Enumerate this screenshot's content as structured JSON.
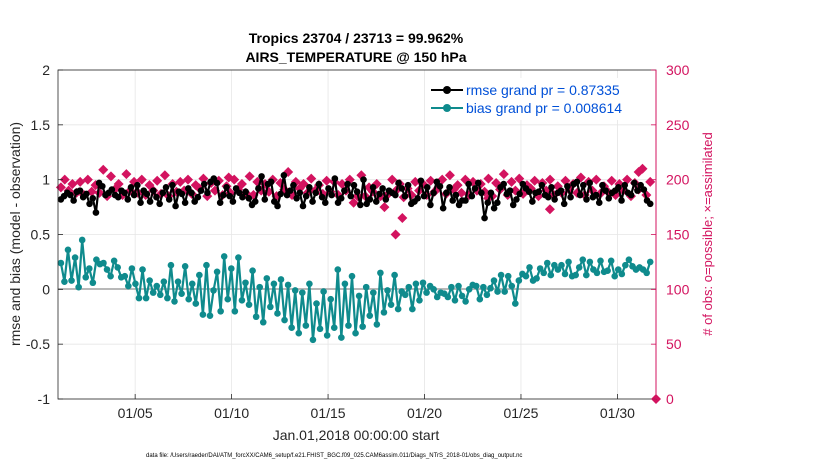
{
  "chart_data": {
    "type": "line",
    "title_line1": "Tropics 23704 / 23713 = 99.962%",
    "title_line2": "AIRS_TEMPERATURE @ 150 hPa",
    "xlabel": "Jan.01,2018 00:00:00 start",
    "ylabel_left": "rmse and bias (model - observation)",
    "ylabel_right": "# of obs: o=possible; ×=assimilated",
    "x_tick_labels": [
      "01/05",
      "01/10",
      "01/15",
      "01/20",
      "01/25",
      "01/30"
    ],
    "x_tick_days": [
      5,
      10,
      15,
      20,
      25,
      30
    ],
    "xlim": [
      1,
      32
    ],
    "y_left_ticks": [
      -1,
      -0.5,
      0,
      0.5,
      1,
      1.5,
      2
    ],
    "y_left_tick_labels": [
      "-1",
      "-0.5",
      "0",
      "0.5",
      "1",
      "1.5",
      "2"
    ],
    "ylim_left": [
      -1,
      2
    ],
    "y_right_ticks": [
      0,
      50,
      100,
      150,
      200,
      250,
      300
    ],
    "y_right_tick_labels": [
      "0",
      "50",
      "100",
      "150",
      "200",
      "250",
      "300"
    ],
    "ylim_right": [
      0,
      300
    ],
    "zero_line": 0,
    "legend": {
      "rmse_label": "rmse grand pr = 0.87335",
      "bias_label": "bias grand pr = 0.008614",
      "position": "top-right"
    },
    "series": [
      {
        "name": "rmse",
        "axis": "left",
        "color": "#000000",
        "values": [
          0.82,
          0.85,
          0.88,
          0.86,
          0.81,
          0.89,
          0.9,
          0.84,
          0.87,
          0.78,
          0.83,
          0.7,
          0.97,
          0.94,
          0.86,
          0.88,
          0.91,
          0.86,
          0.84,
          0.9,
          0.88,
          0.82,
          0.93,
          0.86,
          0.95,
          0.79,
          0.9,
          0.87,
          0.8,
          0.9,
          0.84,
          0.78,
          0.88,
          0.93,
          0.82,
          0.95,
          0.76,
          0.89,
          0.87,
          0.79,
          0.92,
          0.88,
          0.8,
          0.84,
          0.9,
          0.96,
          0.88,
          0.98,
          1.01,
          0.97,
          0.79,
          0.86,
          0.93,
          0.85,
          0.8,
          0.92,
          0.88,
          0.84,
          0.89,
          0.83,
          0.77,
          0.8,
          0.92,
          1.03,
          0.82,
          0.96,
          0.98,
          0.8,
          0.76,
          0.87,
          1.04,
          0.86,
          0.9,
          0.95,
          0.83,
          0.88,
          0.76,
          0.85,
          0.93,
          0.8,
          0.88,
          0.96,
          0.84,
          0.79,
          0.92,
          0.86,
          1.01,
          0.79,
          0.83,
          0.9,
          0.96,
          0.85,
          0.95,
          0.89,
          0.77,
          1.0,
          0.78,
          0.82,
          0.93,
          0.8,
          0.87,
          0.92,
          0.82,
          0.9,
          0.88,
          0.86,
          0.97,
          0.92,
          0.85,
          0.95,
          0.78,
          0.8,
          0.83,
          0.99,
          0.85,
          0.93,
          0.77,
          0.88,
          0.98,
          0.94,
          0.74,
          0.88,
          0.93,
          0.81,
          0.86,
          0.77,
          0.81,
          0.81,
          0.96,
          0.85,
          0.92,
          0.97,
          0.88,
          0.65,
          0.79,
          0.88,
          0.74,
          0.79,
          0.93,
          0.96,
          0.87,
          0.9,
          0.77,
          0.82,
          0.87,
          0.96,
          0.92,
          0.89,
          0.8,
          0.88,
          0.89,
          0.95,
          0.86,
          0.84,
          0.93,
          0.82,
          0.88,
          0.9,
          0.78,
          0.94,
          0.84,
          0.96,
          0.98,
          0.86,
          0.95,
          0.82,
          0.97,
          0.84,
          0.86,
          0.79,
          0.95,
          0.9,
          0.83,
          0.88,
          0.9,
          0.93,
          0.81,
          0.95,
          0.88,
          0.86,
          0.97,
          0.9,
          0.95,
          0.91,
          0.81,
          0.78
        ]
      },
      {
        "name": "bias",
        "axis": "left",
        "color": "#0f8b8d",
        "values": [
          0.24,
          0.07,
          0.36,
          0.08,
          0.29,
          0.02,
          0.45,
          0.11,
          0.19,
          0.06,
          0.27,
          0.23,
          0.24,
          0.18,
          0.12,
          0.26,
          0.2,
          0.11,
          0.12,
          0.03,
          0.19,
          0.05,
          -0.08,
          0.18,
          -0.08,
          0.08,
          -0.03,
          0.03,
          -0.05,
          0.07,
          -0.08,
          0.22,
          -0.11,
          0.07,
          -0.04,
          0.21,
          -0.09,
          0.05,
          -0.13,
          0.13,
          -0.23,
          0.22,
          -0.24,
          -0.01,
          0.16,
          -0.2,
          0.3,
          -0.09,
          0.19,
          -0.2,
          0.29,
          -0.1,
          0.06,
          -0.14,
          0.17,
          -0.25,
          0.02,
          -0.3,
          0.1,
          -0.16,
          0.05,
          -0.22,
          0.09,
          -0.28,
          0.04,
          -0.35,
          -0.01,
          -0.4,
          -0.03,
          -0.33,
          0.05,
          -0.46,
          -0.13,
          -0.36,
          -0.02,
          -0.42,
          -0.09,
          -0.35,
          0.18,
          -0.44,
          0.05,
          -0.33,
          0.12,
          -0.4,
          -0.06,
          -0.34,
          0.02,
          -0.24,
          -0.03,
          -0.32,
          0.15,
          -0.21,
          -0.01,
          -0.14,
          0.13,
          -0.18,
          -0.02,
          -0.05,
          0.02,
          -0.18,
          0.05,
          -0.1,
          0.06,
          -0.03,
          0.03,
          0.0,
          -0.07,
          -0.03,
          -0.04,
          -0.07,
          0.02,
          -0.1,
          0.03,
          -0.06,
          -0.11,
          0.0,
          0.04,
          0.03,
          -0.09,
          0.02,
          -0.05,
          0.01,
          0.08,
          -0.02,
          0.13,
          -0.02,
          0.12,
          0.03,
          -0.13,
          0.08,
          0.14,
          0.12,
          0.2,
          0.08,
          0.1,
          0.19,
          0.15,
          0.24,
          0.13,
          0.22,
          0.18,
          0.22,
          0.14,
          0.25,
          0.12,
          0.13,
          0.2,
          0.27,
          0.13,
          0.25,
          0.18,
          0.15,
          0.26,
          0.16,
          0.17,
          0.26,
          0.12,
          0.18,
          0.14,
          0.22,
          0.27,
          0.21,
          0.18,
          0.2,
          0.18,
          0.15,
          0.25
        ]
      },
      {
        "name": "obs_assimilated",
        "axis": "right",
        "color": "#d3135f",
        "values": [
          193,
          200,
          190,
          196,
          188,
          198,
          186,
          200,
          189,
          195,
          188,
          209,
          185,
          203,
          191,
          196,
          186,
          205,
          190,
          198,
          188,
          200,
          186,
          195,
          190,
          199,
          187,
          204,
          185,
          196,
          189,
          198,
          190,
          200,
          187,
          195,
          192,
          201,
          185,
          197,
          190,
          199,
          186,
          194,
          188,
          200,
          191,
          196,
          188,
          203,
          186,
          198,
          190,
          196,
          189,
          200,
          185,
          197,
          191,
          207,
          186,
          198,
          192,
          196,
          188,
          201,
          190,
          195,
          187,
          199,
          189,
          198,
          186,
          196,
          190,
          200,
          179,
          185,
          204,
          185,
          193,
          189,
          196,
          185,
          175,
          187,
          200,
          190,
          196,
          184,
          192,
          186,
          198,
          190,
          196,
          186,
          199,
          189,
          193,
          200,
          187,
          204,
          191,
          195,
          188,
          200,
          186,
          198,
          190,
          196,
          189,
          201,
          185,
          197,
          191,
          205,
          186,
          198,
          190,
          201,
          187,
          195,
          192,
          199,
          185,
          197,
          190,
          200,
          186,
          194,
          188,
          199,
          191,
          196,
          188,
          202,
          186,
          198,
          190,
          200,
          187,
          194,
          189,
          199,
          186,
          196,
          190,
          200,
          185,
          197,
          191,
          210,
          186,
          198
        ]
      },
      {
        "name": "obs_assimilated_outliers",
        "axis": "right",
        "color": "#d3135f",
        "x_days": [
          18.5,
          18.85,
          9.85,
          23.3,
          26.5,
          31.1
        ],
        "values": [
          150,
          165,
          202,
          183,
          173,
          207
        ]
      }
    ]
  },
  "footnote": "data file: /Users/raeder/DAI/ATM_forcXX/CAM6_setup/f.e21.FHIST_BGC.f09_025.CAM6assim.011/Diags_NTrS_2018-01/obs_diag_output.nc"
}
